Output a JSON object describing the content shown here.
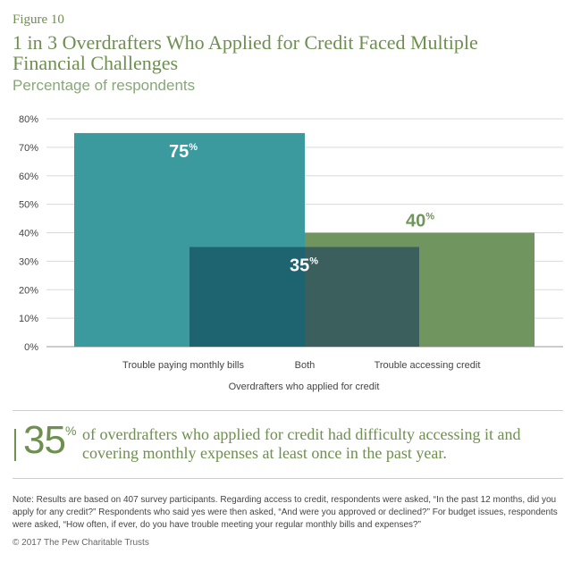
{
  "figure_label": "Figure 10",
  "title": "1 in 3 Overdrafters Who Applied for Credit Faced Multiple Financial Challenges",
  "subtitle": "Percentage of respondents",
  "chart_data": {
    "type": "bar",
    "categories": [
      "Trouble paying monthly bills",
      "Both",
      "Trouble accessing credit"
    ],
    "values": [
      75,
      35,
      40
    ],
    "value_labels": [
      "75",
      "35",
      "40"
    ],
    "value_suffix": "%",
    "xlabel": "Overdrafters who applied for credit",
    "ylabel": "",
    "ylim": [
      0,
      80
    ],
    "yticks": [
      0,
      10,
      20,
      30,
      40,
      50,
      60,
      70,
      80
    ],
    "ytick_labels": [
      "0%",
      "10%",
      "20%",
      "30%",
      "40%",
      "50%",
      "60%",
      "70%",
      "80%"
    ],
    "grid": true,
    "colors": {
      "bills": "#3a9a9e",
      "credit": "#71955f",
      "both_over_bills": "#1e6470",
      "both_over_credit": "#3a5f5c",
      "label_75": "#ffffff",
      "label_35": "#ffffff",
      "label_40": "#71955f"
    }
  },
  "callout": {
    "number": "35",
    "unit": "%",
    "text": "of overdrafters who applied for credit had difficulty accessing it and covering monthly expenses at least once in the past year."
  },
  "note": "Note: Results are based on 407 survey participants. Regarding access to credit, respondents were asked, “In the past 12 months, did you apply for any credit?” Respondents who said yes were then asked, “And were you approved or declined?” For budget issues, respondents were asked, “How often, if ever, do you have trouble meeting your regular monthly bills and expenses?”",
  "copyright": "© 2017 The Pew Charitable Trusts"
}
